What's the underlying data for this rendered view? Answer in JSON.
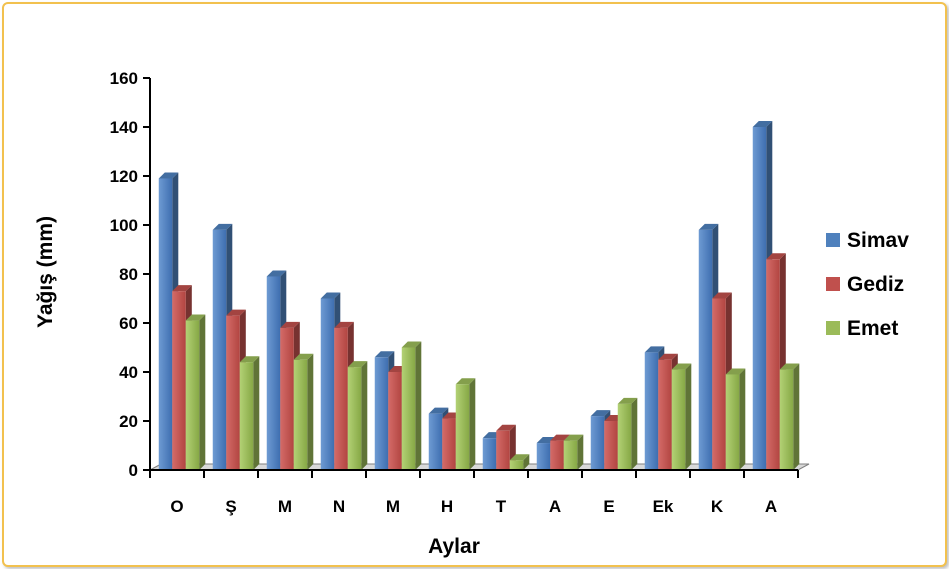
{
  "chart_data": {
    "type": "bar",
    "title": "",
    "xlabel": "Aylar",
    "ylabel": "Yağış (mm)",
    "ylim": [
      0,
      160
    ],
    "yticks": [
      0,
      20,
      40,
      60,
      80,
      100,
      120,
      140,
      160
    ],
    "categories": [
      "O",
      "Ş",
      "M",
      "N",
      "M",
      "H",
      "T",
      "A",
      "E",
      "Ek",
      "K",
      "A"
    ],
    "series": [
      {
        "name": "Simav",
        "color": "#4f81bd",
        "values": [
          119,
          98,
          79,
          70,
          46,
          23,
          13,
          11,
          22,
          48,
          98,
          140
        ]
      },
      {
        "name": "Gediz",
        "color": "#c0504d",
        "values": [
          73,
          63,
          58,
          58,
          40,
          21,
          16,
          12,
          20,
          45,
          70,
          86
        ]
      },
      {
        "name": "Emet",
        "color": "#9bbb59",
        "values": [
          61,
          44,
          45,
          42,
          50,
          35,
          4,
          12,
          27,
          41,
          39,
          41
        ]
      }
    ],
    "legend_position": "right",
    "grid": false
  }
}
